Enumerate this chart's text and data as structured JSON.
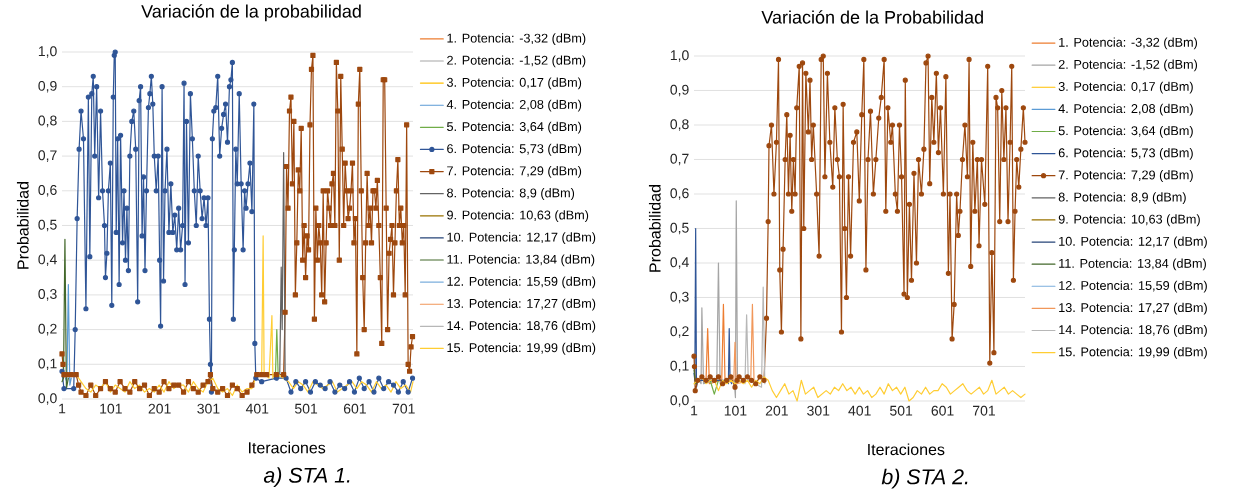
{
  "chart_data": [
    {
      "type": "line",
      "title": "Variación de la probabilidad",
      "xlabel": "Iteraciones",
      "ylabel": "Probabilidad",
      "xlim": [
        1,
        720
      ],
      "ylim": [
        0,
        1
      ],
      "xticks": [
        1,
        101,
        201,
        301,
        401,
        501,
        601,
        701
      ],
      "yticks": [
        {
          "value": 0,
          "label": "0,0"
        },
        {
          "value": 0.1,
          "label": "0,1"
        },
        {
          "value": 0.2,
          "label": "0,2"
        },
        {
          "value": 0.3,
          "label": "0,3"
        },
        {
          "value": 0.4,
          "label": "0,4"
        },
        {
          "value": 0.5,
          "label": "0,5"
        },
        {
          "value": 0.6,
          "label": "0,6"
        },
        {
          "value": 0.7,
          "label": "0,7"
        },
        {
          "value": 0.8,
          "label": "0,8"
        },
        {
          "value": 0.9,
          "label": "0,9"
        },
        {
          "value": 1,
          "label": "1,0"
        }
      ],
      "grid": "y",
      "legend": "right",
      "annotations": [
        "a) STA 1."
      ],
      "series": [
        {
          "name": "1. Potencia: -3,32 (dBm)",
          "color": "#ed7d31"
        },
        {
          "name": "2. Potencia: -1,52 (dBm)",
          "color": "#a5a5a5"
        },
        {
          "name": "3. Potencia: 0,17 (dBm)",
          "color": "#ffc000"
        },
        {
          "name": "4. Potencia: 2,08 (dBm)",
          "color": "#5b9bd5",
          "x": [
            8,
            11,
            14,
            17,
            20
          ],
          "values": [
            0.06,
            0.05,
            0.33,
            0.04,
            0.06
          ]
        },
        {
          "name": "5. Potencia: 3,64 (dBm)",
          "color": "#70ad47",
          "x": [
            436,
            438,
            441,
            444,
            447
          ],
          "values": [
            0.07,
            0.06,
            0.2,
            0.06,
            0.07
          ]
        },
        {
          "name": "6. Potencia: 5,73 (dBm)",
          "color": "#2f5597",
          "marker": "circle",
          "x": [
            1,
            5,
            25,
            28,
            32,
            36,
            40,
            45,
            50,
            55,
            58,
            62,
            65,
            68,
            72,
            76,
            80,
            84,
            88,
            90,
            93,
            96,
            100,
            103,
            106,
            108,
            110,
            112,
            115,
            118,
            121,
            125,
            128,
            131,
            134,
            137,
            140,
            144,
            148,
            152,
            156,
            159,
            162,
            165,
            168,
            171,
            174,
            178,
            181,
            184,
            187,
            190,
            194,
            198,
            201,
            203,
            206,
            209,
            212,
            216,
            220,
            224,
            228,
            232,
            236,
            240,
            244,
            248,
            251,
            253,
            256,
            260,
            264,
            268,
            272,
            276,
            280,
            284,
            288,
            292,
            296,
            300,
            303,
            305,
            307,
            309,
            312,
            316,
            320,
            324,
            328,
            332,
            336,
            340,
            344,
            347,
            350,
            352,
            354,
            357,
            360,
            364,
            368,
            372,
            375,
            378,
            382,
            386,
            390,
            394,
            396,
            398,
            410,
            440,
            460,
            470,
            480,
            490,
            500,
            510,
            520,
            530,
            540,
            550,
            560,
            570,
            580,
            590,
            600,
            610,
            620,
            630,
            640,
            650,
            660,
            670,
            680,
            690,
            700,
            710,
            719
          ],
          "values": [
            0.08,
            0.03,
            0.03,
            0.2,
            0.52,
            0.72,
            0.83,
            0.75,
            0.26,
            0.87,
            0.41,
            0.88,
            0.93,
            0.7,
            0.9,
            0.58,
            0.83,
            0.6,
            0.5,
            0.35,
            0.42,
            0.6,
            0.68,
            0.27,
            0.87,
            0.99,
            1.0,
            0.48,
            0.75,
            0.33,
            0.76,
            0.45,
            0.6,
            0.4,
            0.55,
            0.37,
            0.7,
            0.8,
            0.83,
            0.72,
            0.28,
            0.86,
            0.9,
            0.47,
            0.64,
            0.37,
            0.6,
            0.84,
            0.88,
            0.93,
            0.85,
            0.7,
            0.6,
            0.7,
            0.4,
            0.21,
            0.9,
            0.34,
            0.6,
            0.72,
            0.48,
            0.62,
            0.48,
            0.53,
            0.43,
            0.55,
            0.43,
            0.5,
            0.91,
            0.33,
            0.8,
            0.45,
            0.88,
            0.75,
            0.6,
            0.5,
            0.7,
            0.6,
            0.52,
            0.58,
            0.5,
            0.58,
            0.23,
            0.1,
            0.02,
            0.75,
            0.83,
            0.84,
            0.93,
            0.7,
            0.78,
            0.82,
            0.85,
            0.74,
            0.9,
            0.92,
            0.97,
            0.23,
            0.43,
            0.72,
            0.62,
            0.88,
            0.62,
            0.43,
            0.6,
            0.55,
            0.62,
            0.68,
            0.54,
            0.85,
            0.16,
            0.06,
            0.05,
            0.06,
            0.06,
            0.02,
            0.05,
            0.03,
            0.05,
            0.02,
            0.05,
            0.04,
            0.03,
            0.05,
            0.02,
            0.04,
            0.03,
            0.05,
            0.02,
            0.06,
            0.03,
            0.05,
            0.02,
            0.06,
            0.03,
            0.05,
            0.04,
            0.02,
            0.05,
            0.02,
            0.06
          ]
        },
        {
          "name": "7. Potencia: 7,29 (dBm)",
          "color": "#9e480e",
          "marker": "square",
          "x": [
            1,
            3,
            5,
            10,
            20,
            30,
            35,
            40,
            50,
            60,
            70,
            80,
            90,
            100,
            110,
            120,
            130,
            140,
            150,
            160,
            170,
            180,
            190,
            200,
            210,
            220,
            230,
            240,
            250,
            260,
            270,
            280,
            290,
            300,
            305,
            310,
            320,
            330,
            340,
            350,
            360,
            370,
            380,
            390,
            400,
            410,
            420,
            440,
            455,
            458,
            461,
            464,
            467,
            470,
            473,
            476,
            479,
            482,
            485,
            488,
            491,
            494,
            497,
            500,
            503,
            506,
            509,
            512,
            515,
            518,
            521,
            524,
            527,
            530,
            533,
            536,
            539,
            542,
            545,
            548,
            551,
            554,
            557,
            560,
            563,
            566,
            569,
            572,
            575,
            578,
            581,
            584,
            587,
            590,
            593,
            596,
            599,
            602,
            605,
            608,
            611,
            614,
            617,
            620,
            623,
            626,
            629,
            632,
            635,
            638,
            641,
            644,
            647,
            650,
            653,
            656,
            659,
            662,
            665,
            668,
            671,
            674,
            677,
            680,
            683,
            686,
            689,
            692,
            695,
            698,
            701,
            704,
            707,
            710,
            713,
            716,
            719
          ],
          "values": [
            0.13,
            0.1,
            0.07,
            0.07,
            0.07,
            0.07,
            0.04,
            0.02,
            0.01,
            0.04,
            0.01,
            0.03,
            0.05,
            0.03,
            0.02,
            0.05,
            0.03,
            0.02,
            0.05,
            0.03,
            0.04,
            0.01,
            0.03,
            0.02,
            0.05,
            0.03,
            0.04,
            0.04,
            0.02,
            0.05,
            0.03,
            0.02,
            0.04,
            0.05,
            0.07,
            0.03,
            0.02,
            0.03,
            0.01,
            0.04,
            0.03,
            0.01,
            0.02,
            0.04,
            0.07,
            0.07,
            0.07,
            0.07,
            0.07,
            0.25,
            0.67,
            0.55,
            0.83,
            0.87,
            0.62,
            0.8,
            0.3,
            0.45,
            0.66,
            0.6,
            0.78,
            0.4,
            0.5,
            0.35,
            0.47,
            0.43,
            0.79,
            0.95,
            0.99,
            0.23,
            0.55,
            0.4,
            0.5,
            0.45,
            0.3,
            0.6,
            0.28,
            0.45,
            0.6,
            0.55,
            0.5,
            0.62,
            0.65,
            0.5,
            0.97,
            0.83,
            0.4,
            0.93,
            0.72,
            0.5,
            0.68,
            0.6,
            0.52,
            0.55,
            0.6,
            0.68,
            0.45,
            0.52,
            0.13,
            0.85,
            0.95,
            0.6,
            0.35,
            0.2,
            0.45,
            0.65,
            0.5,
            0.55,
            0.45,
            0.6,
            0.6,
            0.55,
            0.63,
            0.5,
            0.35,
            0.16,
            0.92,
            0.92,
            0.55,
            0.2,
            0.42,
            0.46,
            0.5,
            0.3,
            0.45,
            0.6,
            0.69,
            0.5,
            0.55,
            0.45,
            0.5,
            0.3,
            0.79,
            0.1,
            0.08,
            0.15,
            0.18
          ]
        },
        {
          "name": "8. Potencia: 8,9 (dBm)",
          "color": "#636363",
          "x": [
            440,
            447,
            450,
            452,
            455,
            458
          ],
          "values": [
            0.06,
            0.07,
            0.38,
            0.2,
            0.71,
            0.07
          ]
        },
        {
          "name": "9. Potencia: 10,63 (dBm)",
          "color": "#997300"
        },
        {
          "name": "10. Potencia: 12,17 (dBm)",
          "color": "#264478"
        },
        {
          "name": "11. Potencia: 13,84 (dBm)",
          "color": "#43682b",
          "x": [
            1,
            4,
            7,
            10,
            14
          ],
          "values": [
            0.05,
            0.06,
            0.46,
            0.03,
            0.06
          ]
        },
        {
          "name": "12. Potencia: 15,59 (dBm)",
          "color": "#7cafdd"
        },
        {
          "name": "13. Potencia: 17,27 (dBm)",
          "color": "#f1975a"
        },
        {
          "name": "14. Potencia: 18,76 (dBm)",
          "color": "#b7b7b7"
        },
        {
          "name": "15. Potencia: 19,99 (dBm)",
          "color": "#ffcd33",
          "x": [
            20,
            30,
            40,
            50,
            60,
            70,
            80,
            90,
            100,
            110,
            120,
            130,
            140,
            150,
            160,
            170,
            180,
            190,
            200,
            210,
            220,
            230,
            240,
            250,
            260,
            270,
            280,
            290,
            300,
            310,
            320,
            330,
            340,
            350,
            360,
            370,
            380,
            390,
            400,
            410,
            413,
            415,
            417,
            425,
            431,
            433,
            435,
            445,
            455,
            465,
            475,
            485,
            495,
            505,
            515,
            525,
            535,
            545,
            555,
            565,
            575,
            585,
            595,
            605,
            615,
            625,
            635,
            645,
            655,
            665,
            675,
            685,
            695,
            705,
            715,
            720
          ],
          "values": [
            0.07,
            0.07,
            0.05,
            0.03,
            0.02,
            0.04,
            0.03,
            0.05,
            0.02,
            0.04,
            0.03,
            0.02,
            0.05,
            0.03,
            0.04,
            0.02,
            0.03,
            0.02,
            0.04,
            0.02,
            0.05,
            0.03,
            0.04,
            0.04,
            0.02,
            0.05,
            0.03,
            0.02,
            0.05,
            0.06,
            0.03,
            0.02,
            0.03,
            0.01,
            0.04,
            0.02,
            0.03,
            0.03,
            0.07,
            0.07,
            0.47,
            0.07,
            0.07,
            0.06,
            0.24,
            0.06,
            0.07,
            0.07,
            0.06,
            0.05,
            0.03,
            0.05,
            0.04,
            0.02,
            0.05,
            0.04,
            0.03,
            0.04,
            0.05,
            0.02,
            0.03,
            0.04,
            0.05,
            0.03,
            0.05,
            0.04,
            0.02,
            0.05,
            0.03,
            0.04,
            0.02,
            0.05,
            0.03,
            0.04,
            0.02,
            0.05
          ]
        }
      ]
    },
    {
      "type": "line",
      "title": "Variación de la Probabilidad",
      "xlabel": "Iteraciones",
      "ylabel": "Probabilidad",
      "xlim": [
        1,
        800
      ],
      "ylim": [
        0,
        1
      ],
      "xticks": [
        1,
        101,
        201,
        301,
        401,
        501,
        601,
        701
      ],
      "yticks": [
        {
          "value": 0,
          "label": "0,0"
        },
        {
          "value": 0.1,
          "label": "0,1"
        },
        {
          "value": 0.2,
          "label": "0,2"
        },
        {
          "value": 0.3,
          "label": "0,3"
        },
        {
          "value": 0.4,
          "label": "0,4"
        },
        {
          "value": 0.5,
          "label": "0,5"
        },
        {
          "value": 0.6,
          "label": "0,6"
        },
        {
          "value": 0.7,
          "label": "0,7"
        },
        {
          "value": 0.8,
          "label": "0,8"
        },
        {
          "value": 0.9,
          "label": "0,9"
        },
        {
          "value": 1,
          "label": "1,0"
        }
      ],
      "grid": "y",
      "legend": "right",
      "annotations": [
        "b) STA 2."
      ],
      "series": [
        {
          "name": "1. Potencia: -3,32 (dBm)",
          "color": "#ed7d31",
          "x": [
            30,
            34,
            38,
            68,
            72,
            76
          ],
          "values": [
            0.06,
            0.21,
            0.05,
            0.06,
            0.28,
            0.05
          ]
        },
        {
          "name": "2. Potencia: -1,52 (dBm)",
          "color": "#a5a5a5",
          "x": [
            14,
            18,
            20,
            24,
            56,
            60,
            64,
            98,
            101,
            103,
            106
          ],
          "values": [
            0.06,
            0.05,
            0.27,
            0.05,
            0.06,
            0.4,
            0.05,
            0.06,
            0.01,
            0.58,
            0.05
          ]
        },
        {
          "name": "3. Potencia: 0,17 (dBm)",
          "color": "#ffc000"
        },
        {
          "name": "4. Potencia: 2,08 (dBm)",
          "color": "#5b9bd5"
        },
        {
          "name": "5. Potencia: 3,64 (dBm)",
          "color": "#70ad47",
          "x": [
            40,
            50,
            60
          ],
          "values": [
            0.06,
            0.02,
            0.06
          ]
        },
        {
          "name": "6. Potencia: 5,73 (dBm)",
          "color": "#2f5597",
          "x": [
            1,
            3,
            5,
            7,
            10,
            80,
            84,
            86,
            88,
            92
          ],
          "values": [
            0.08,
            0.06,
            0.5,
            0.04,
            0.06,
            0.06,
            0.05,
            0.21,
            0.06,
            0.05
          ]
        },
        {
          "name": "7. Potencia: 7,29 (dBm)",
          "color": "#9e480e",
          "marker": "circle",
          "x": [
            1,
            2,
            4,
            10,
            20,
            30,
            40,
            50,
            60,
            70,
            80,
            90,
            100,
            105,
            110,
            120,
            130,
            140,
            150,
            160,
            170,
            176,
            180,
            182,
            188,
            194,
            200,
            205,
            208,
            212,
            216,
            221,
            225,
            229,
            233,
            237,
            241,
            245,
            249,
            255,
            259,
            263,
            266,
            271,
            277,
            281,
            285,
            289,
            297,
            303,
            308,
            313,
            317,
            323,
            329,
            336,
            341,
            347,
            352,
            357,
            361,
            365,
            369,
            374,
            379,
            386,
            394,
            400,
            406,
            411,
            416,
            421,
            427,
            434,
            440,
            447,
            453,
            460,
            464,
            469,
            476,
            480,
            487,
            492,
            497,
            502,
            508,
            511,
            516,
            521,
            526,
            532,
            538,
            543,
            550,
            556,
            561,
            566,
            570,
            575,
            580,
            586,
            591,
            596,
            603,
            609,
            615,
            619,
            624,
            629,
            635,
            639,
            643,
            649,
            655,
            661,
            665,
            669,
            674,
            679,
            685,
            689,
            695,
            703,
            710,
            715,
            720,
            725,
            730,
            734,
            739,
            744,
            749,
            754,
            759,
            764,
            768,
            772,
            776,
            780,
            785,
            790,
            796,
            800
          ],
          "values": [
            0.13,
            0.1,
            0.03,
            0.06,
            0.07,
            0.06,
            0.07,
            0.06,
            0.07,
            0.05,
            0.06,
            0.07,
            0.04,
            0.06,
            0.07,
            0.06,
            0.07,
            0.06,
            0.05,
            0.07,
            0.06,
            0.24,
            0.52,
            0.74,
            0.8,
            0.6,
            0.75,
            0.99,
            0.38,
            0.2,
            0.44,
            0.7,
            0.83,
            0.6,
            0.77,
            0.55,
            0.7,
            0.6,
            0.85,
            0.97,
            0.18,
            0.98,
            0.5,
            0.95,
            0.78,
            0.93,
            0.7,
            0.8,
            0.6,
            0.42,
            0.99,
            1.0,
            0.65,
            0.95,
            0.75,
            0.62,
            0.85,
            0.7,
            0.65,
            0.2,
            0.86,
            0.5,
            0.3,
            0.65,
            0.42,
            0.75,
            0.78,
            0.58,
            0.83,
            0.99,
            0.38,
            0.7,
            0.84,
            0.6,
            0.7,
            0.82,
            0.88,
            0.99,
            0.55,
            0.85,
            0.75,
            0.8,
            0.6,
            0.55,
            0.8,
            0.65,
            0.31,
            0.93,
            0.3,
            0.57,
            0.35,
            0.66,
            0.4,
            0.7,
            0.6,
            0.73,
            0.98,
            1.0,
            0.63,
            0.88,
            0.75,
            0.95,
            0.72,
            0.85,
            0.6,
            0.94,
            0.37,
            0.6,
            0.18,
            0.28,
            0.6,
            0.48,
            0.55,
            0.7,
            0.8,
            0.65,
            0.99,
            0.39,
            0.75,
            0.55,
            0.7,
            0.45,
            0.7,
            0.57,
            0.97,
            0.11,
            0.43,
            0.14,
            0.88,
            0.85,
            0.52,
            0.9,
            0.7,
            0.85,
            0.52,
            0.75,
            0.97,
            0.35,
            0.55,
            0.7,
            0.62,
            0.73,
            0.85,
            0.75
          ]
        },
        {
          "name": "8. Potencia: 8,9 (dBm)",
          "color": "#636363"
        },
        {
          "name": "9. Potencia: 10,63 (dBm)",
          "color": "#997300"
        },
        {
          "name": "10. Potencia: 12,17 (dBm)",
          "color": "#264478"
        },
        {
          "name": "11. Potencia: 13,84 (dBm)",
          "color": "#43682b",
          "x": [
            1,
            5,
            10
          ],
          "values": [
            0.09,
            0.05,
            0.06
          ]
        },
        {
          "name": "12. Potencia: 15,59 (dBm)",
          "color": "#7cafdd"
        },
        {
          "name": "13. Potencia: 17,27 (dBm)",
          "color": "#f1975a",
          "x": [
            97,
            100,
            103,
            138,
            142,
            146
          ],
          "values": [
            0.06,
            0.17,
            0.05,
            0.06,
            0.28,
            0.05
          ]
        },
        {
          "name": "14. Potencia: 18,76 (dBm)",
          "color": "#b7b7b7",
          "x": [
            124,
            128,
            132,
            164,
            168,
            172
          ],
          "values": [
            0.05,
            0.25,
            0.06,
            0.04,
            0.33,
            0.05
          ]
        },
        {
          "name": "15. Potencia: 19,99 (dBm)",
          "color": "#ffcd33",
          "x": [
            1,
            10,
            20,
            30,
            40,
            50,
            60,
            70,
            80,
            90,
            100,
            110,
            120,
            130,
            140,
            150,
            160,
            170,
            180,
            190,
            200,
            210,
            220,
            230,
            240,
            250,
            260,
            270,
            280,
            290,
            300,
            310,
            320,
            330,
            340,
            350,
            360,
            370,
            380,
            390,
            400,
            410,
            420,
            430,
            440,
            450,
            460,
            470,
            480,
            490,
            500,
            510,
            520,
            530,
            540,
            550,
            560,
            570,
            580,
            590,
            600,
            610,
            620,
            630,
            640,
            650,
            660,
            670,
            680,
            690,
            700,
            710,
            720,
            730,
            740,
            750,
            760,
            770,
            780,
            790,
            800
          ],
          "values": [
            0.05,
            0.06,
            0.07,
            0.05,
            0.06,
            0.06,
            0.03,
            0.06,
            0.05,
            0.06,
            0.05,
            0.06,
            0.05,
            0.06,
            0.04,
            0.06,
            0.05,
            0.07,
            0.06,
            0.03,
            0.01,
            0.03,
            0.05,
            0.02,
            0.03,
            0.0,
            0.06,
            0.02,
            0.03,
            0.04,
            0.01,
            0.02,
            0.03,
            0.02,
            0.04,
            0.03,
            0.05,
            0.03,
            0.04,
            0.02,
            0.04,
            0.02,
            0.03,
            0.01,
            0.02,
            0.04,
            0.02,
            0.05,
            0.03,
            0.04,
            0.02,
            0.04,
            0.0,
            0.01,
            0.03,
            0.02,
            0.04,
            0.02,
            0.03,
            0.03,
            0.05,
            0.04,
            0.02,
            0.03,
            0.04,
            0.05,
            0.03,
            0.02,
            0.03,
            0.04,
            0.02,
            0.03,
            0.06,
            0.02,
            0.03,
            0.04,
            0.02,
            0.03,
            0.02,
            0.01,
            0.02
          ]
        }
      ]
    }
  ]
}
